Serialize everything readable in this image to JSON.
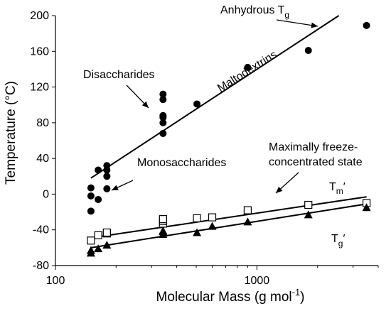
{
  "chart_data": {
    "type": "scatter",
    "title": "",
    "xlabel": "Molecular Mass (g mol",
    "xlabel_sup": "-1",
    "xlabel_end": ")",
    "ylabel": "Temperature (°C)",
    "x_scale": "log",
    "xlim": [
      100,
      4000
    ],
    "ylim": [
      -80,
      200
    ],
    "x_ticks": [
      100,
      1000
    ],
    "x_tick_labels": [
      "100",
      "1000"
    ],
    "y_ticks": [
      -80,
      -40,
      0,
      40,
      80,
      120,
      160,
      200
    ],
    "y_tick_labels": [
      "-80",
      "-40",
      "0",
      "40",
      "80",
      "120",
      "160",
      "200"
    ],
    "grid": false,
    "series": [
      {
        "name": "Anhydrous Tg",
        "marker": "circle-filled",
        "points": [
          [
            150,
            -19
          ],
          [
            150,
            -2
          ],
          [
            150,
            7
          ],
          [
            163,
            -6
          ],
          [
            163,
            27
          ],
          [
            180,
            6
          ],
          [
            180,
            20
          ],
          [
            180,
            27
          ],
          [
            180,
            32
          ],
          [
            342,
            68
          ],
          [
            342,
            80
          ],
          [
            342,
            86
          ],
          [
            342,
            88
          ],
          [
            342,
            106
          ],
          [
            342,
            112
          ],
          [
            504,
            101
          ],
          [
            900,
            142
          ],
          [
            1800,
            161
          ],
          [
            3500,
            189
          ]
        ],
        "fit": [
          [
            150,
            18
          ],
          [
            2550,
            200
          ]
        ]
      },
      {
        "name": "Tm′",
        "marker": "square-open",
        "points": [
          [
            150,
            -52
          ],
          [
            163,
            -46
          ],
          [
            180,
            -44
          ],
          [
            180,
            -43
          ],
          [
            342,
            -33
          ],
          [
            342,
            -30
          ],
          [
            342,
            -28
          ],
          [
            504,
            -27
          ],
          [
            600,
            -26
          ],
          [
            900,
            -18
          ],
          [
            1800,
            -12
          ],
          [
            3500,
            -10
          ]
        ],
        "fit": [
          [
            150,
            -49
          ],
          [
            3500,
            -3
          ]
        ]
      },
      {
        "name": "Tg′",
        "marker": "triangle-filled",
        "points": [
          [
            150,
            -66
          ],
          [
            150,
            -63
          ],
          [
            163,
            -61
          ],
          [
            180,
            -57
          ],
          [
            342,
            -45
          ],
          [
            342,
            -42
          ],
          [
            342,
            -41
          ],
          [
            504,
            -43
          ],
          [
            600,
            -36
          ],
          [
            900,
            -31
          ],
          [
            1800,
            -23
          ],
          [
            3500,
            -15
          ]
        ],
        "fit": [
          [
            150,
            -60
          ],
          [
            3500,
            -11
          ]
        ]
      }
    ],
    "annotations": {
      "anhydrous": {
        "text": "Anhydrous T",
        "sub": "g"
      },
      "maltodextrins": {
        "text": "Maltodextrins"
      },
      "disaccharides": {
        "text": "Disaccharides"
      },
      "monosaccharides": {
        "text": "Monosaccharides"
      },
      "freeze_line1": {
        "text": "Maximally freeze-"
      },
      "freeze_line2": {
        "text": "concentrated state"
      },
      "tm": {
        "text": "T",
        "sub": "m",
        "suffix": "′"
      },
      "tg": {
        "text": "T",
        "sub": "g",
        "suffix": "′"
      }
    }
  }
}
